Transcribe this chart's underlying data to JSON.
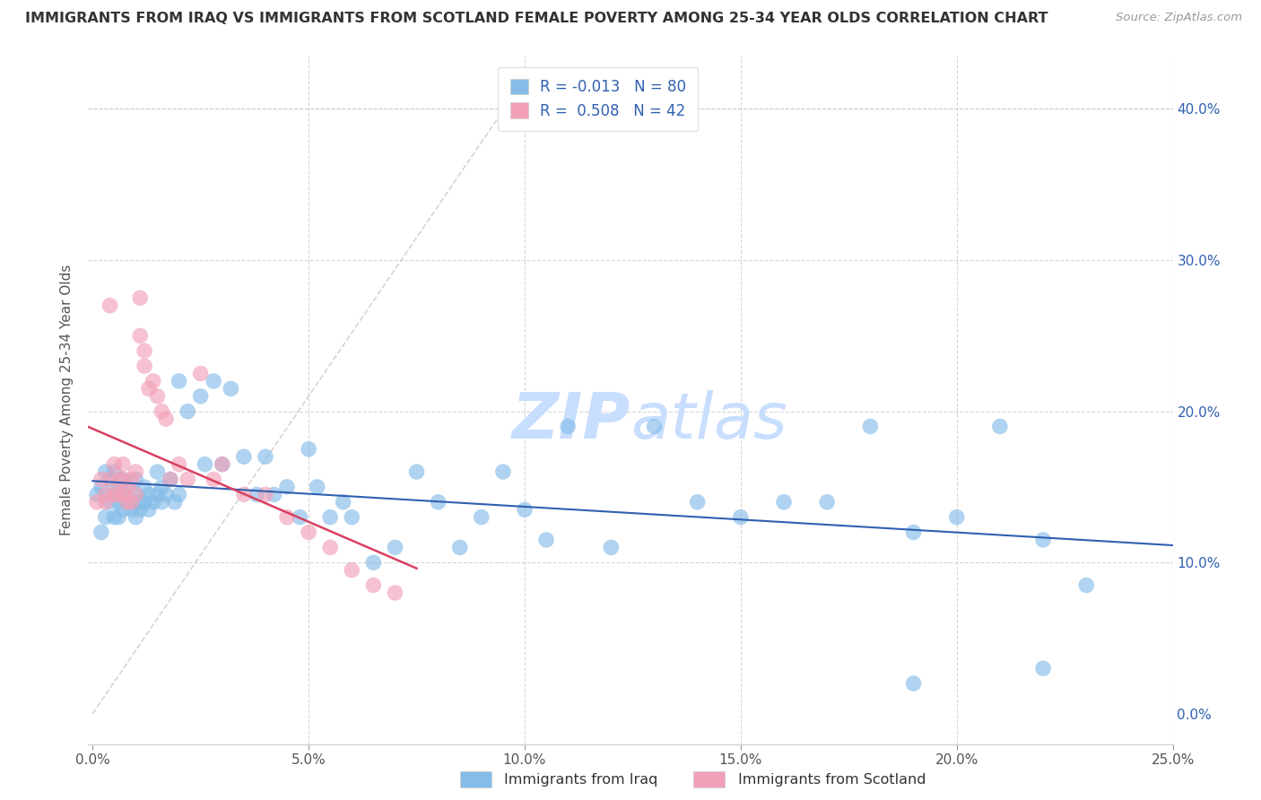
{
  "title": "IMMIGRANTS FROM IRAQ VS IMMIGRANTS FROM SCOTLAND FEMALE POVERTY AMONG 25-34 YEAR OLDS CORRELATION CHART",
  "source": "Source: ZipAtlas.com",
  "ylabel": "Female Poverty Among 25-34 Year Olds",
  "xlim": [
    -0.001,
    0.25
  ],
  "ylim": [
    -0.02,
    0.435
  ],
  "xticks": [
    0.0,
    0.05,
    0.1,
    0.15,
    0.2,
    0.25
  ],
  "yticks": [
    0.0,
    0.1,
    0.2,
    0.3,
    0.4
  ],
  "xticklabels": [
    "0.0%",
    "5.0%",
    "10.0%",
    "15.0%",
    "20.0%",
    "25.0%"
  ],
  "yticklabels_right": [
    "0.0%",
    "10.0%",
    "20.0%",
    "30.0%",
    "40.0%"
  ],
  "iraq_R": -0.013,
  "iraq_N": 80,
  "scotland_R": 0.508,
  "scotland_N": 42,
  "iraq_color": "#85BCE8",
  "scotland_color": "#F2A0B8",
  "iraq_line_color": "#3060B0",
  "scotland_line_color": "#D84060",
  "diagonal_color": "#D0C8C8",
  "legend_text_color": "#3060B0",
  "tick_color": "#3060B0",
  "background_color": "#FFFFFF",
  "grid_color": "#CCCCCC",
  "watermark_color": "#C8DEFF",
  "title_color": "#333333",
  "source_color": "#999999",
  "bottom_label_color": "#333333",
  "iraq_x": [
    0.001,
    0.002,
    0.002,
    0.003,
    0.003,
    0.004,
    0.004,
    0.005,
    0.005,
    0.005,
    0.006,
    0.006,
    0.006,
    0.007,
    0.007,
    0.007,
    0.008,
    0.008,
    0.009,
    0.009,
    0.01,
    0.01,
    0.01,
    0.011,
    0.011,
    0.012,
    0.012,
    0.013,
    0.013,
    0.014,
    0.015,
    0.015,
    0.016,
    0.016,
    0.017,
    0.018,
    0.019,
    0.02,
    0.02,
    0.022,
    0.025,
    0.026,
    0.028,
    0.03,
    0.032,
    0.035,
    0.038,
    0.04,
    0.042,
    0.045,
    0.048,
    0.05,
    0.052,
    0.055,
    0.058,
    0.06,
    0.065,
    0.07,
    0.075,
    0.08,
    0.085,
    0.09,
    0.095,
    0.1,
    0.105,
    0.11,
    0.12,
    0.13,
    0.14,
    0.15,
    0.16,
    0.17,
    0.18,
    0.19,
    0.2,
    0.21,
    0.22,
    0.23,
    0.22,
    0.19
  ],
  "iraq_y": [
    0.145,
    0.12,
    0.15,
    0.13,
    0.16,
    0.14,
    0.155,
    0.13,
    0.145,
    0.16,
    0.14,
    0.13,
    0.15,
    0.135,
    0.145,
    0.155,
    0.14,
    0.15,
    0.14,
    0.135,
    0.145,
    0.13,
    0.155,
    0.14,
    0.135,
    0.15,
    0.14,
    0.145,
    0.135,
    0.14,
    0.145,
    0.16,
    0.14,
    0.15,
    0.145,
    0.155,
    0.14,
    0.22,
    0.145,
    0.2,
    0.21,
    0.165,
    0.22,
    0.165,
    0.215,
    0.17,
    0.145,
    0.17,
    0.145,
    0.15,
    0.13,
    0.175,
    0.15,
    0.13,
    0.14,
    0.13,
    0.1,
    0.11,
    0.16,
    0.14,
    0.11,
    0.13,
    0.16,
    0.135,
    0.115,
    0.19,
    0.11,
    0.19,
    0.14,
    0.13,
    0.14,
    0.14,
    0.19,
    0.12,
    0.13,
    0.19,
    0.115,
    0.085,
    0.03,
    0.02
  ],
  "scotland_x": [
    0.001,
    0.002,
    0.003,
    0.003,
    0.004,
    0.004,
    0.005,
    0.005,
    0.006,
    0.006,
    0.007,
    0.007,
    0.007,
    0.008,
    0.008,
    0.009,
    0.009,
    0.01,
    0.01,
    0.011,
    0.011,
    0.012,
    0.012,
    0.013,
    0.014,
    0.015,
    0.016,
    0.017,
    0.018,
    0.02,
    0.022,
    0.025,
    0.028,
    0.03,
    0.035,
    0.04,
    0.045,
    0.05,
    0.055,
    0.06,
    0.065,
    0.07
  ],
  "scotland_y": [
    0.14,
    0.155,
    0.14,
    0.145,
    0.27,
    0.155,
    0.165,
    0.145,
    0.145,
    0.155,
    0.155,
    0.145,
    0.165,
    0.14,
    0.15,
    0.14,
    0.155,
    0.16,
    0.145,
    0.275,
    0.25,
    0.24,
    0.23,
    0.215,
    0.22,
    0.21,
    0.2,
    0.195,
    0.155,
    0.165,
    0.155,
    0.225,
    0.155,
    0.165,
    0.145,
    0.145,
    0.13,
    0.12,
    0.11,
    0.095,
    0.085,
    0.08
  ]
}
